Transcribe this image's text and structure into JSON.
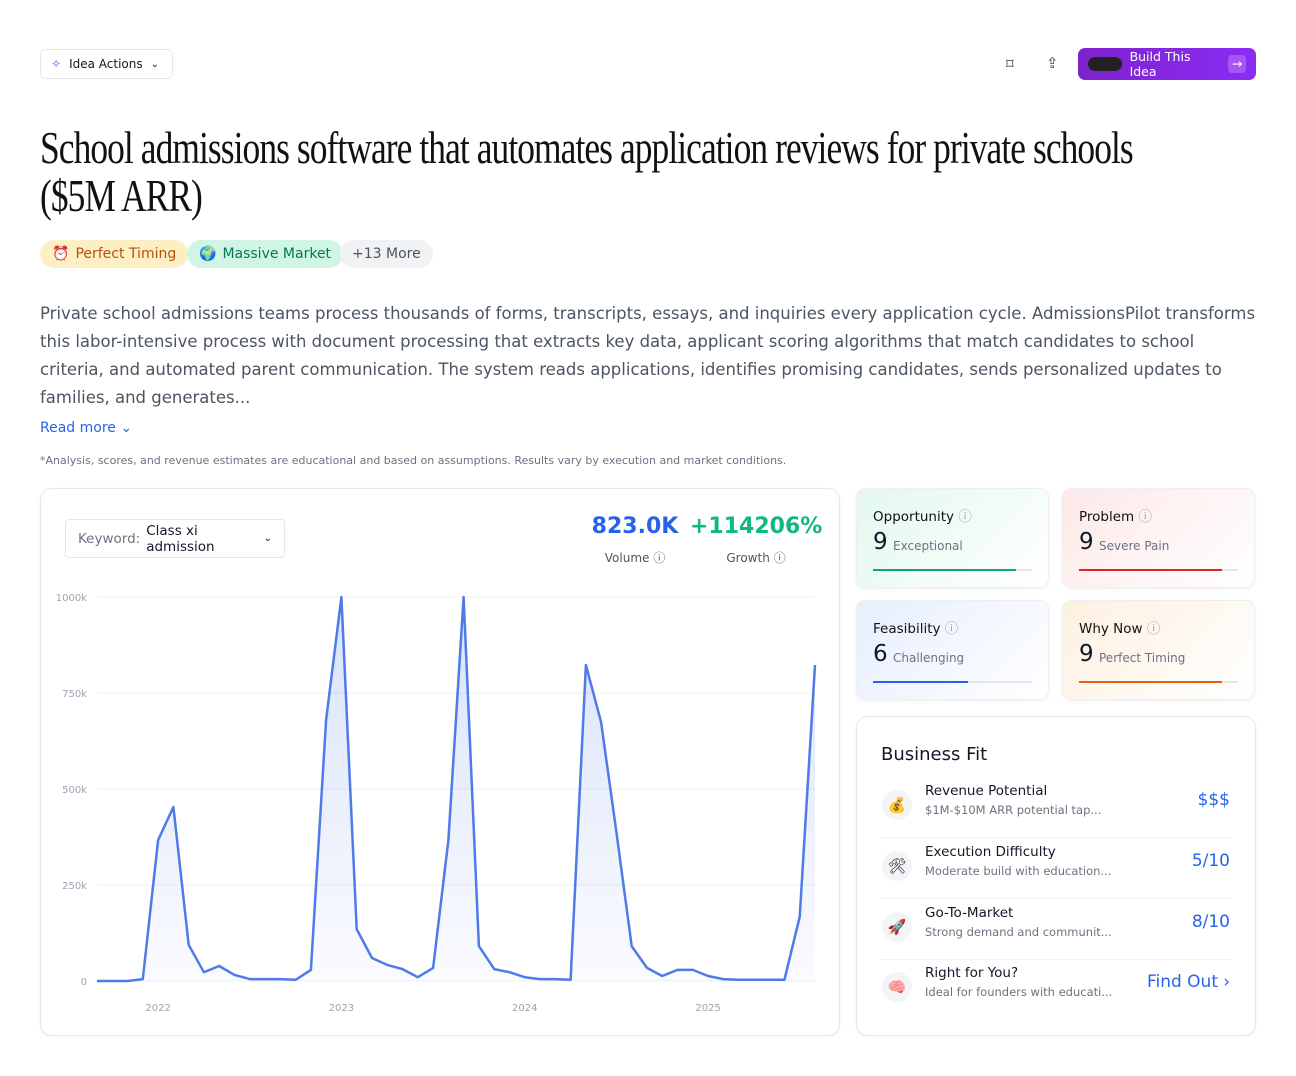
{
  "header": {
    "actions_button": "Idea Actions",
    "build_button": "Build This Idea"
  },
  "title": "School admissions software that automates application reviews for private schools ($5M ARR)",
  "tags": [
    "Perfect Timing",
    "Massive Market",
    "+13 More"
  ],
  "description": "Private school admissions teams process thousands of forms, transcripts, essays, and inquiries every application cycle. AdmissionsPilot transforms this labor-intensive process with document processing that extracts key data, applicant scoring algorithms that match candidates to school criteria, and automated parent communication. The system reads applications, identifies promising candidates, sends personalized updates to families, and generates...",
  "read_more": "Read more",
  "disclaimer": "*Analysis, scores, and revenue estimates are educational and based on assumptions. Results vary by execution and market conditions.",
  "keyword": {
    "label": "Keyword:",
    "value": "Class xi admission"
  },
  "metrics": [
    {
      "value": "823.0K",
      "label": "Volume"
    },
    {
      "value": "+114206%",
      "label": "Growth"
    }
  ],
  "chart_data": {
    "type": "area",
    "categories": [
      null,
      null,
      null,
      null,
      "2022",
      null,
      null,
      null,
      null,
      null,
      null,
      null,
      null,
      null,
      null,
      null,
      "2023",
      null,
      null,
      null,
      null,
      null,
      null,
      null,
      null,
      null,
      null,
      null,
      "2024",
      null,
      null,
      null,
      null,
      null,
      null,
      null,
      null,
      null,
      null,
      null,
      "2025",
      null,
      null,
      null,
      null,
      null,
      null,
      null
    ],
    "values": [
      0,
      0,
      0,
      5000,
      367000,
      453000,
      94000,
      23000,
      39000,
      16000,
      5000,
      5000,
      5000,
      3000,
      29000,
      680000,
      1000000,
      135000,
      60000,
      42000,
      31000,
      10000,
      34000,
      367000,
      1000000,
      91000,
      31000,
      23000,
      10000,
      5000,
      5000,
      3000,
      823000,
      674000,
      388000,
      91000,
      34000,
      13000,
      29000,
      29000,
      13000,
      5000,
      3000,
      3000,
      3000,
      3000,
      167000,
      823000
    ],
    "color": "#4f7be8",
    "ylim": [
      0,
      1000000
    ],
    "yticks": [
      0,
      {
        "value": 250000,
        "label": "250k"
      },
      {
        "value": 500000,
        "label": "500k"
      },
      {
        "value": 750000,
        "label": "750k"
      },
      {
        "value": 1000000,
        "label": "1000k"
      }
    ],
    "grid": true
  },
  "scores": [
    {
      "name": "Opportunity",
      "score": 9,
      "label": "Exceptional"
    },
    {
      "name": "Problem",
      "score": 9,
      "label": "Severe Pain"
    },
    {
      "name": "Feasibility",
      "score": 6,
      "label": "Challenging"
    },
    {
      "name": "Why Now",
      "score": 9,
      "label": "Perfect Timing"
    }
  ],
  "business_fit": {
    "title": "Business Fit",
    "rows": [
      {
        "name": "Revenue Potential",
        "description": "$1M-$10M ARR potential tap...",
        "value": "$$$"
      },
      {
        "name": "Execution Difficulty",
        "description": "Moderate build with education...",
        "value": "5/10"
      },
      {
        "name": "Go-To-Market",
        "description": "Strong demand and communit...",
        "value": "8/10"
      },
      {
        "name": "Right for You?",
        "description": "Ideal for founders with educati...",
        "value": "Find Out"
      }
    ]
  }
}
